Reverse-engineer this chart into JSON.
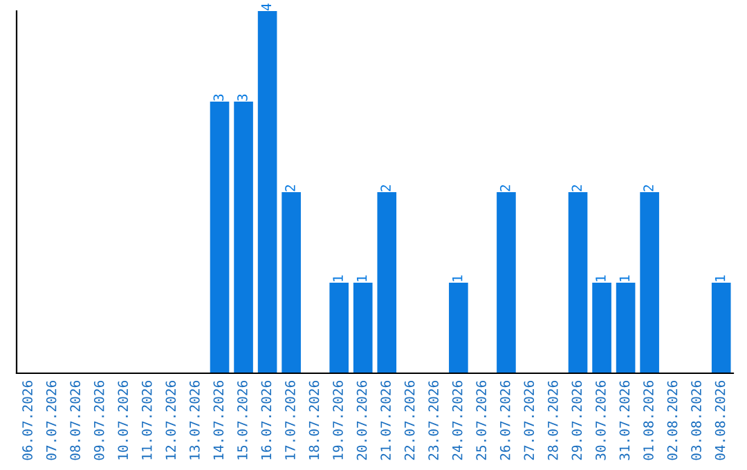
{
  "chart_data": {
    "type": "bar",
    "categories": [
      "06.07.2026",
      "07.07.2026",
      "08.07.2026",
      "09.07.2026",
      "10.07.2026",
      "11.07.2026",
      "12.07.2026",
      "13.07.2026",
      "14.07.2026",
      "15.07.2026",
      "16.07.2026",
      "17.07.2026",
      "18.07.2026",
      "19.07.2026",
      "20.07.2026",
      "21.07.2026",
      "22.07.2026",
      "23.07.2026",
      "24.07.2026",
      "25.07.2026",
      "26.07.2026",
      "27.07.2026",
      "28.07.2026",
      "29.07.2026",
      "30.07.2026",
      "31.07.2026",
      "01.08.2026",
      "02.08.2026",
      "03.08.2026",
      "04.08.2026"
    ],
    "values": [
      0,
      0,
      0,
      0,
      0,
      0,
      0,
      0,
      3,
      3,
      4,
      2,
      0,
      1,
      1,
      2,
      0,
      0,
      1,
      0,
      2,
      0,
      0,
      2,
      1,
      1,
      2,
      0,
      0,
      1
    ],
    "value_labels": [
      null,
      null,
      null,
      null,
      null,
      null,
      null,
      null,
      "3",
      "3",
      "4",
      "2",
      null,
      "1",
      "1",
      "2",
      null,
      null,
      "1",
      null,
      "2",
      null,
      null,
      "2",
      "1",
      "1",
      "2",
      null,
      null,
      "1"
    ],
    "color": "#0b7be0",
    "tick_labels": "x",
    "grid": false,
    "legend": false
  }
}
